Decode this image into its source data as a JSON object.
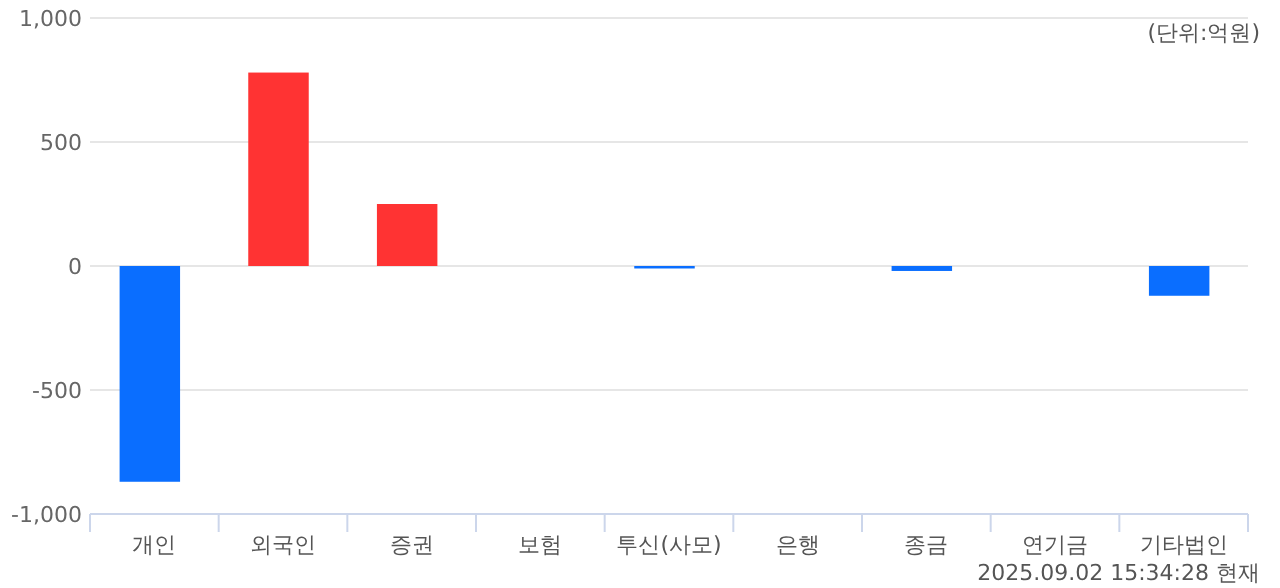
{
  "chart_data": {
    "type": "bar",
    "categories": [
      "개인",
      "외국인",
      "증권",
      "보험",
      "투신(사모)",
      "은행",
      "종금",
      "연기금",
      "기타법인"
    ],
    "values": [
      -870,
      780,
      250,
      0,
      -10,
      0,
      -20,
      0,
      -120
    ],
    "colors": [
      "#0a6eff",
      "#ff3333",
      "#ff3333",
      "#ff3333",
      "#0a6eff",
      "#ff3333",
      "#0a6eff",
      "#ff3333",
      "#0a6eff"
    ],
    "ylim": [
      -1000,
      1000
    ],
    "yticks": [
      {
        "value": -1000,
        "label": "-1,000"
      },
      -500,
      0,
      500,
      {
        "value": 1000,
        "label": "1,000"
      }
    ],
    "grid": "y",
    "annotations": [
      "(단위:억원)",
      "2025.09.02 15:34:28 현재"
    ]
  }
}
